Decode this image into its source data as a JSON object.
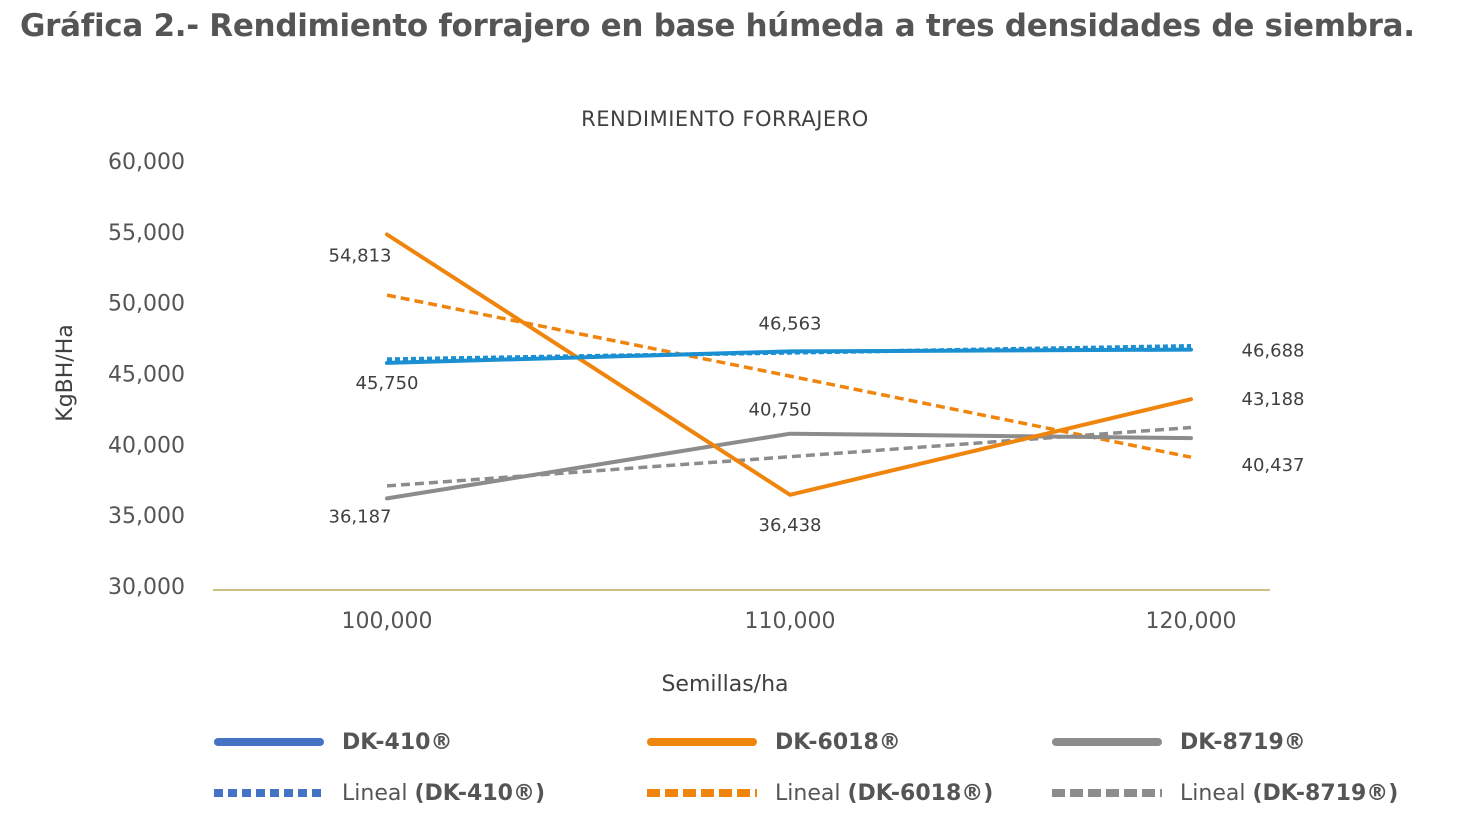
{
  "figure_title": "Gráfica 2.- Rendimiento forrajero en base húmeda a tres densidades de siembra.",
  "colors": {
    "DK-410": "#1a8fd1",
    "DK-410_legend": "#4472c4",
    "DK-6018": "#f0850d",
    "DK-8719": "#8c8c8c",
    "axis_line": "#bfa85a"
  },
  "chart_data": {
    "type": "line",
    "title": "RENDIMIENTO FORRAJERO",
    "xlabel": "Semillas/ha",
    "ylabel": "KgBH/Ha",
    "categories": [
      "100,000",
      "110,000",
      "120,000"
    ],
    "ylim": [
      30000,
      60000
    ],
    "yticks": [
      "30,000",
      "35,000",
      "40,000",
      "45,000",
      "50,000",
      "55,000",
      "60,000"
    ],
    "grid": false,
    "legend_position": "bottom",
    "series": [
      {
        "name": "DK-410®",
        "values": [
          45750,
          46563,
          46688
        ],
        "labels": [
          "45,750",
          "46,563",
          "46,688"
        ],
        "color": "#1a8fd1",
        "style": "solid"
      },
      {
        "name": "DK-6018®",
        "values": [
          54813,
          36438,
          43188
        ],
        "labels": [
          "54,813",
          "36,438",
          "43,188"
        ],
        "color": "#f0850d",
        "style": "solid"
      },
      {
        "name": "DK-8719®",
        "values": [
          36187,
          40750,
          40437
        ],
        "labels": [
          "36,187",
          "40,750",
          "40,437"
        ],
        "color": "#8c8c8c",
        "style": "solid"
      },
      {
        "name": "Lineal (DK-410®)",
        "values": [
          46000,
          46469,
          46938
        ],
        "color": "#1a8fd1",
        "style": "dotted"
      },
      {
        "name": "Lineal (DK-6018®)",
        "values": [
          50531,
          44813,
          39094
        ],
        "color": "#f0850d",
        "style": "dashed"
      },
      {
        "name": "Lineal (DK-8719®)",
        "values": [
          37063,
          39125,
          41187
        ],
        "color": "#8c8c8c",
        "style": "dashed"
      }
    ]
  },
  "legend": [
    {
      "prefix": "",
      "name": "DK-410®",
      "color": "#4472c4",
      "style": "solid"
    },
    {
      "prefix": "",
      "name": "DK-6018®",
      "color": "#f0850d",
      "style": "solid"
    },
    {
      "prefix": "",
      "name": "DK-8719®",
      "color": "#8c8c8c",
      "style": "solid"
    },
    {
      "prefix": "Lineal ",
      "name": "(DK-410®)",
      "color": "#4472c4",
      "style": "dotted"
    },
    {
      "prefix": "Lineal ",
      "name": "(DK-6018®)",
      "color": "#f0850d",
      "style": "dashed"
    },
    {
      "prefix": "Lineal ",
      "name": "(DK-8719®)",
      "color": "#8c8c8c",
      "style": "dashed"
    }
  ]
}
